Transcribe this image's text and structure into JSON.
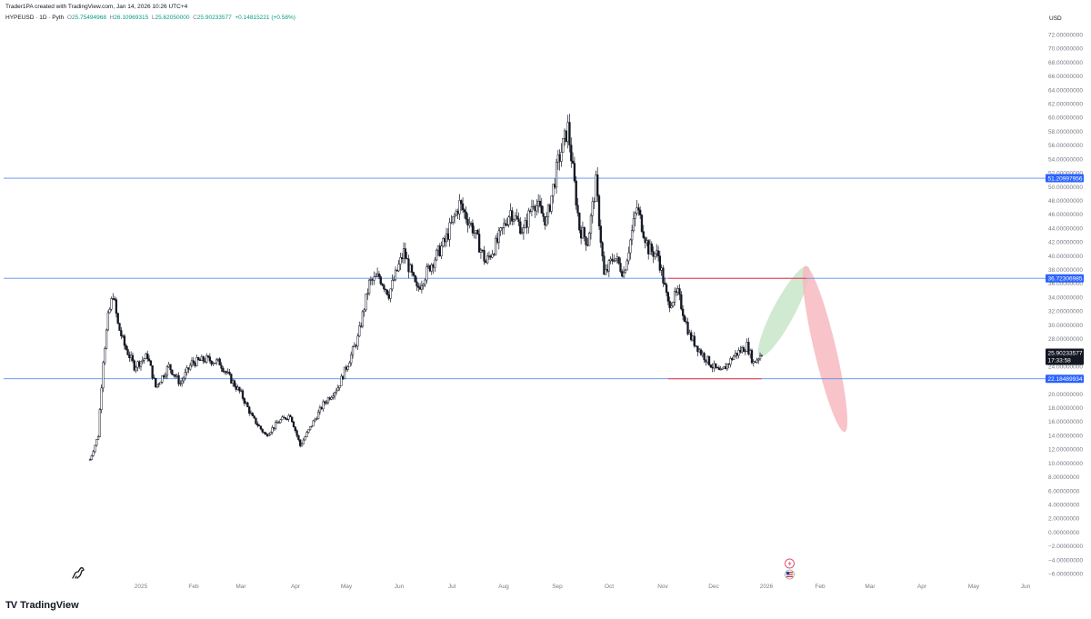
{
  "header": {
    "credit": "Trader1PA created with TradingView.com, Jan 14, 2026 10:26 UTC+4",
    "symbol": "HYPEUSD · 1D · Pyth",
    "open_label": "O",
    "open": "25.75494968",
    "high_label": "H",
    "high": "26.10969315",
    "low_label": "L",
    "low": "25.62050000",
    "close_label": "C",
    "close": "25.90233577",
    "change": "+0.14815221 (+0.58%)"
  },
  "currency": "USD",
  "brand": {
    "logo": "TV",
    "name": "TradingView"
  },
  "icons": {
    "watermark": "dinosaur-icon",
    "event_1": "flash-icon",
    "event_2": "us-flag-icon"
  },
  "colors": {
    "candle": "#131722",
    "hline": "#5b8def",
    "hline_badge": "#2962ff",
    "red_line": "#f23645",
    "green_zone": "#c8e6c9",
    "red_zone": "#f7b9bf",
    "axis_text": "#787b86",
    "price_badge": "#131722"
  },
  "chart_data": {
    "type": "candlestick",
    "title": "",
    "xlabel": "",
    "ylabel": "",
    "ylim": [
      -7,
      73
    ],
    "y_ticks": [
      "72.00000000",
      "70.00000000",
      "68.00000000",
      "66.00000000",
      "64.00000000",
      "62.00000000",
      "60.00000000",
      "58.00000000",
      "56.00000000",
      "54.00000000",
      "52.00000000",
      "50.00000000",
      "48.00000000",
      "46.00000000",
      "44.00000000",
      "42.00000000",
      "40.00000000",
      "38.00000000",
      "36.00000000",
      "34.00000000",
      "32.00000000",
      "30.00000000",
      "28.00000000",
      "26.00000000",
      "24.00000000",
      "22.00000000",
      "20.00000000",
      "18.00000000",
      "16.00000000",
      "14.00000000",
      "12.00000000",
      "10.00000000",
      "8.00000000",
      "6.00000000",
      "4.00000000",
      "2.00000000",
      "0.00000000",
      "−2.00000000",
      "−4.00000000",
      "−6.00000000"
    ],
    "x_ticks": [
      "2025",
      "Feb",
      "Mar",
      "Apr",
      "May",
      "Jun",
      "Jul",
      "Aug",
      "Sep",
      "Oct",
      "Nov",
      "Dec",
      "2026",
      "Feb",
      "Mar",
      "Apr",
      "May",
      "Jun"
    ],
    "price_path": [
      {
        "date": "2024-12-01",
        "close": 10.5
      },
      {
        "date": "2024-12-06",
        "close": 14
      },
      {
        "date": "2024-12-09",
        "close": 25
      },
      {
        "date": "2024-12-12",
        "close": 31
      },
      {
        "date": "2024-12-15",
        "close": 34.5
      },
      {
        "date": "2024-12-18",
        "close": 30
      },
      {
        "date": "2024-12-22",
        "close": 27
      },
      {
        "date": "2024-12-28",
        "close": 24
      },
      {
        "date": "2025-01-05",
        "close": 25.5
      },
      {
        "date": "2025-01-10",
        "close": 21
      },
      {
        "date": "2025-01-18",
        "close": 24
      },
      {
        "date": "2025-01-25",
        "close": 21.5
      },
      {
        "date": "2025-02-01",
        "close": 24.5
      },
      {
        "date": "2025-02-10",
        "close": 25
      },
      {
        "date": "2025-02-18",
        "close": 24.5
      },
      {
        "date": "2025-02-25",
        "close": 22
      },
      {
        "date": "2025-03-03",
        "close": 20
      },
      {
        "date": "2025-03-10",
        "close": 16.5
      },
      {
        "date": "2025-03-18",
        "close": 14
      },
      {
        "date": "2025-03-26",
        "close": 16
      },
      {
        "date": "2025-04-02",
        "close": 17
      },
      {
        "date": "2025-04-08",
        "close": 12.5
      },
      {
        "date": "2025-04-15",
        "close": 15.5
      },
      {
        "date": "2025-04-22",
        "close": 18.5
      },
      {
        "date": "2025-05-01",
        "close": 21
      },
      {
        "date": "2025-05-08",
        "close": 25
      },
      {
        "date": "2025-05-13",
        "close": 28
      },
      {
        "date": "2025-05-20",
        "close": 36
      },
      {
        "date": "2025-05-26",
        "close": 37
      },
      {
        "date": "2025-06-01",
        "close": 34.5
      },
      {
        "date": "2025-06-10",
        "close": 40.5
      },
      {
        "date": "2025-06-18",
        "close": 35
      },
      {
        "date": "2025-06-26",
        "close": 38.5
      },
      {
        "date": "2025-07-05",
        "close": 42
      },
      {
        "date": "2025-07-14",
        "close": 47.5
      },
      {
        "date": "2025-07-22",
        "close": 44
      },
      {
        "date": "2025-07-30",
        "close": 39
      },
      {
        "date": "2025-08-06",
        "close": 42
      },
      {
        "date": "2025-08-14",
        "close": 46.5
      },
      {
        "date": "2025-08-22",
        "close": 43.5
      },
      {
        "date": "2025-08-28",
        "close": 48
      },
      {
        "date": "2025-09-05",
        "close": 45
      },
      {
        "date": "2025-09-12",
        "close": 53.5
      },
      {
        "date": "2025-09-18",
        "close": 58.5
      },
      {
        "date": "2025-09-25",
        "close": 44
      },
      {
        "date": "2025-09-30",
        "close": 42
      },
      {
        "date": "2025-10-05",
        "close": 50.5
      },
      {
        "date": "2025-10-10",
        "close": 37
      },
      {
        "date": "2025-10-16",
        "close": 40
      },
      {
        "date": "2025-10-22",
        "close": 37.5
      },
      {
        "date": "2025-10-30",
        "close": 47
      },
      {
        "date": "2025-11-06",
        "close": 41
      },
      {
        "date": "2025-11-12",
        "close": 40
      },
      {
        "date": "2025-11-18",
        "close": 33
      },
      {
        "date": "2025-11-24",
        "close": 34.5
      },
      {
        "date": "2025-12-01",
        "close": 28.5
      },
      {
        "date": "2025-12-08",
        "close": 26
      },
      {
        "date": "2025-12-15",
        "close": 24
      },
      {
        "date": "2025-12-20",
        "close": 23
      },
      {
        "date": "2025-12-28",
        "close": 25.5
      },
      {
        "date": "2026-01-05",
        "close": 27
      },
      {
        "date": "2026-01-09",
        "close": 24.5
      },
      {
        "date": "2026-01-14",
        "close": 25.9
      }
    ],
    "horizontal_lines": [
      {
        "value": 51.20997956,
        "label": "51.20997956"
      },
      {
        "value": 36.72306985,
        "label": "36.72306985"
      },
      {
        "value": 22.18489934,
        "label": "22.18489934"
      }
    ],
    "red_segments": [
      {
        "value": 36.72306985,
        "from": "2025-11-18",
        "to": "2026-02-10"
      },
      {
        "value": 22.18489934,
        "from": "2025-11-18",
        "to": "2026-01-14"
      }
    ],
    "projections": [
      {
        "name": "up",
        "color": "green",
        "from": {
          "date": "2026-01-14",
          "value": 25.9
        },
        "to": {
          "date": "2026-02-10",
          "value": 38
        }
      },
      {
        "name": "down",
        "color": "red",
        "from": {
          "date": "2026-02-10",
          "value": 38
        },
        "to": {
          "date": "2026-03-05",
          "value": 15
        }
      }
    ],
    "last_price": {
      "value": 25.90233577,
      "label": "25.90233577",
      "countdown": "17:33:58"
    },
    "grid": false,
    "legend": "none"
  }
}
